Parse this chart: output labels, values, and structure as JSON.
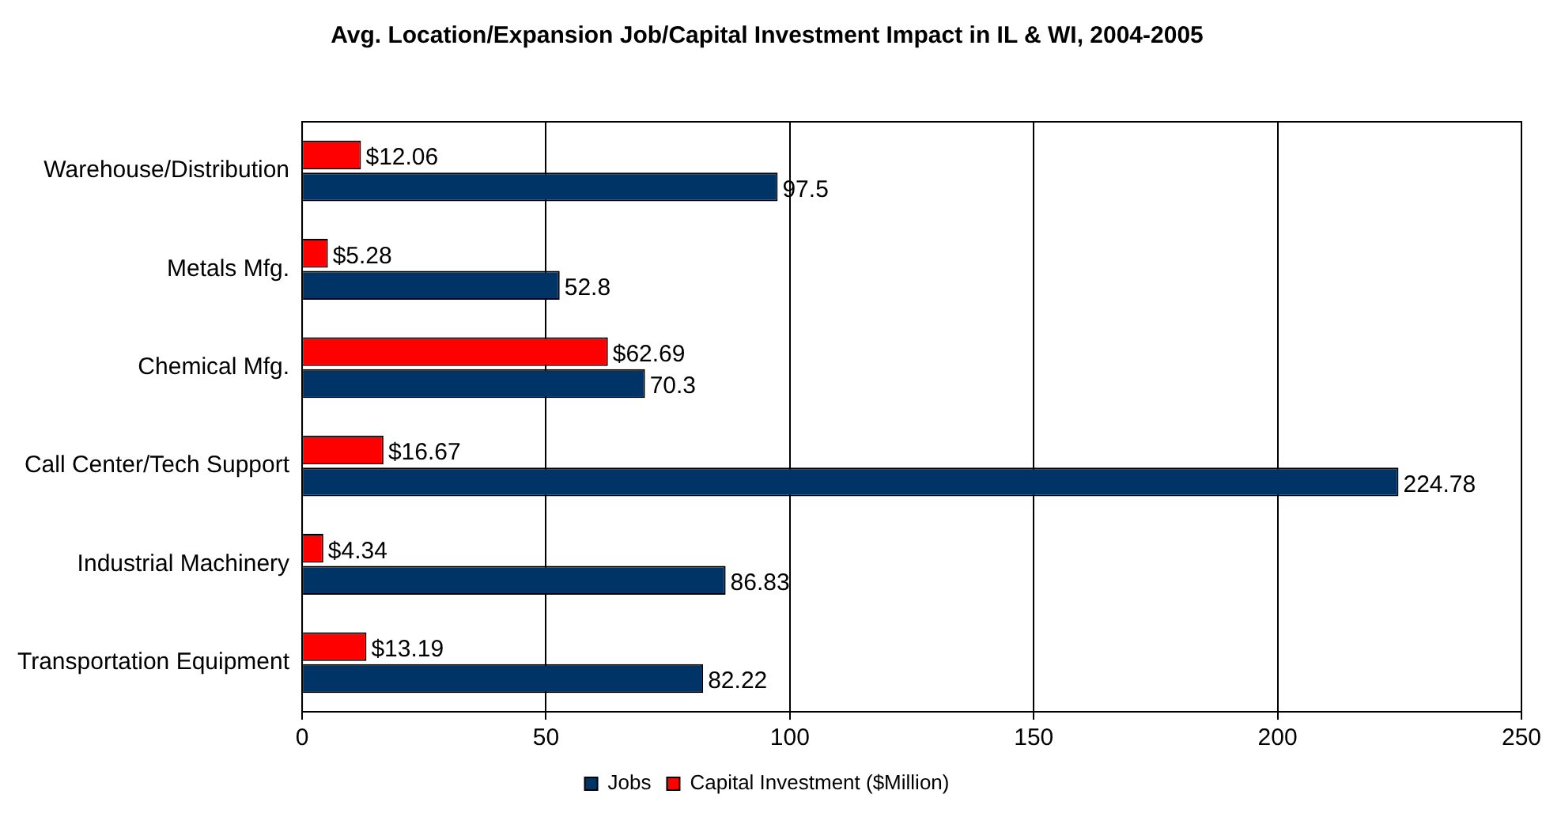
{
  "chart_data": {
    "type": "bar",
    "orientation": "horizontal",
    "title": "Avg. Location/Expansion Job/Capital Investment Impact in IL & WI, 2004-2005",
    "categories": [
      "Warehouse/Distribution",
      "Metals Mfg.",
      "Chemical Mfg.",
      "Call Center/Tech Support",
      "Industrial Machinery",
      "Transportation Equipment"
    ],
    "series": [
      {
        "name": "Jobs",
        "color": "#003366",
        "values": [
          97.5,
          52.8,
          70.3,
          224.78,
          86.83,
          82.22
        ],
        "value_labels": [
          "97.5",
          "52.8",
          "70.3",
          "224.78",
          "86.83",
          "82.22"
        ]
      },
      {
        "name": "Capital Investment ($Million)",
        "color": "#ff0000",
        "values": [
          12.06,
          5.28,
          62.69,
          16.67,
          4.34,
          13.19
        ],
        "value_labels": [
          "$12.06",
          "$5.28",
          "$62.69",
          "$16.67",
          "$4.34",
          "$13.19"
        ]
      }
    ],
    "xlim": [
      0,
      250
    ],
    "xticks": [
      0,
      50,
      100,
      150,
      200,
      250
    ],
    "grid": "x",
    "legend": "bottom"
  }
}
